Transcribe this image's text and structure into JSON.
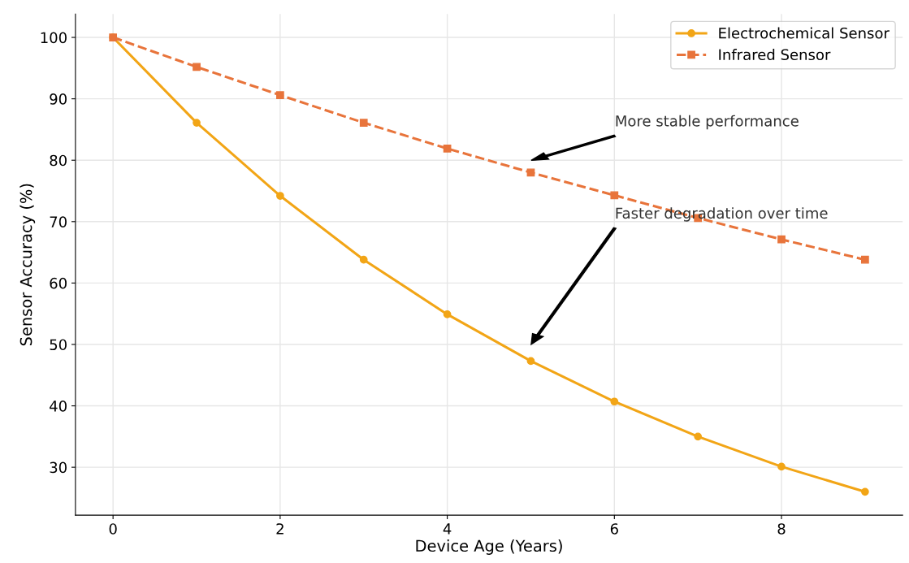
{
  "chart_data": {
    "type": "line",
    "xlabel": "Device Age (Years)",
    "ylabel": "Sensor Accuracy (%)",
    "x": [
      0,
      1,
      2,
      3,
      4,
      5,
      6,
      7,
      8,
      9
    ],
    "series": [
      {
        "name": "Electrochemical Sensor",
        "color": "#f2a516",
        "marker": "circle",
        "line_style": "solid",
        "values": [
          100,
          86.1,
          74.2,
          63.8,
          54.9,
          47.3,
          40.7,
          35.0,
          30.1,
          26.0
        ]
      },
      {
        "name": "Infrared Sensor",
        "color": "#e8743b",
        "marker": "square",
        "line_style": "dashed",
        "values": [
          100,
          95.2,
          90.6,
          86.1,
          81.9,
          78.0,
          74.3,
          70.6,
          67.1,
          63.8
        ]
      }
    ],
    "xlim": [
      -0.45,
      9.45
    ],
    "ylim": [
      22.2,
      103.8
    ],
    "xticks": [
      0,
      2,
      4,
      6,
      8
    ],
    "yticks": [
      30,
      40,
      50,
      60,
      70,
      80,
      90,
      100
    ],
    "grid": true,
    "legend": "top right",
    "annotations": [
      "More stable performance",
      "Faster degradation over time"
    ]
  }
}
